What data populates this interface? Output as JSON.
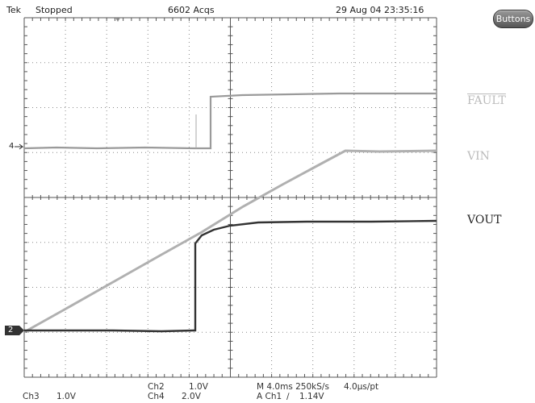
{
  "header": {
    "brand": "Tek",
    "run_state": "Stopped",
    "acquisitions": "6602 Acqs",
    "datetime": "29 Aug 04 23:35:16"
  },
  "buttons_label": "Buttons",
  "signals": {
    "fault": "FAULT",
    "vin": "VIN",
    "vout": "VOUT"
  },
  "markers": {
    "ch4": "4",
    "ch2": "2"
  },
  "footer": {
    "ch3_label": "Ch3",
    "ch3_scale": "1.0V",
    "ch2_label": "Ch2",
    "ch2_scale": "1.0V",
    "ch4_label": "Ch4",
    "ch4_scale": "2.0V",
    "timebase": "M 4.0ms 250kS/s",
    "sample_interval": "4.0µs/pt",
    "trigger_prefix": "A  Ch1",
    "trigger_symbol": "∕",
    "trigger_level": "1.14V"
  },
  "colors": {
    "vout_trace": "#333333",
    "vin_trace": "#b0b0b0",
    "fault_trace": "#9a9a9a",
    "grid": "#555555",
    "dots": "#888888"
  }
}
